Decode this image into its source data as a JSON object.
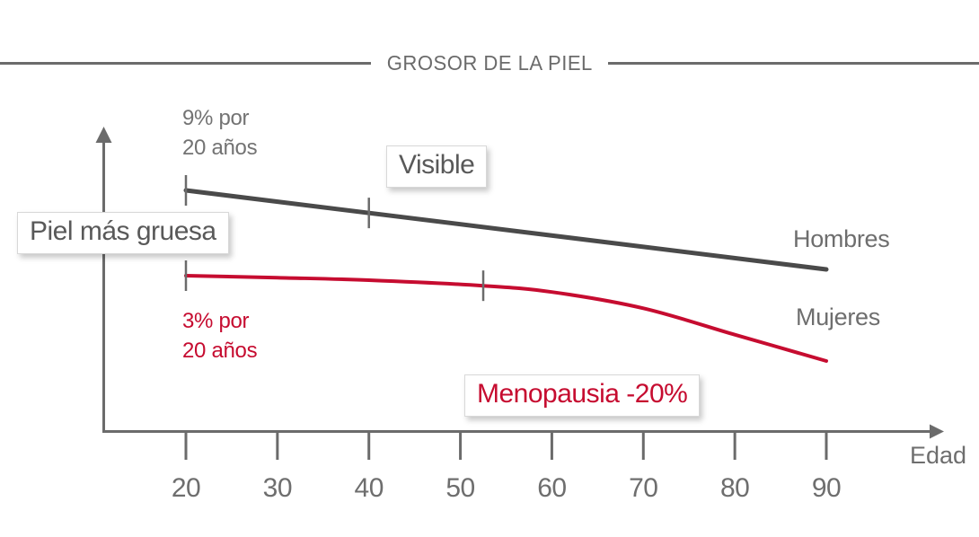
{
  "chart_data": {
    "type": "line",
    "title": "GROSOR DE LA PIEL",
    "xlabel": "Edad",
    "x_range": [
      20,
      90
    ],
    "x_ticks": [
      20,
      30,
      40,
      50,
      60,
      70,
      80,
      90
    ],
    "grid": false,
    "y_axis_labeled": false,
    "series": [
      {
        "name": "Hombres",
        "color": "#4a4a4a",
        "rate_label": "9% por\n20 años",
        "marker_ages": [
          20,
          40
        ],
        "points": [
          {
            "age": 20,
            "value": 100
          },
          {
            "age": 90,
            "value": 68.5
          }
        ]
      },
      {
        "name": "Mujeres",
        "color": "#c60c30",
        "rate_label": "3% por\n20 años",
        "marker_ages": [
          20,
          52.5
        ],
        "points": [
          {
            "age": 20,
            "value": 66
          },
          {
            "age": 30,
            "value": 65.2
          },
          {
            "age": 40,
            "value": 64.2
          },
          {
            "age": 52.5,
            "value": 62
          },
          {
            "age": 60,
            "value": 59.5
          },
          {
            "age": 70,
            "value": 53
          },
          {
            "age": 80,
            "value": 42.5
          },
          {
            "age": 90,
            "value": 32
          }
        ]
      }
    ],
    "annotations": [
      {
        "text": "Piel más gruesa",
        "style": "boxed",
        "color": "#595959"
      },
      {
        "text": "Visible",
        "style": "boxed",
        "color": "#595959"
      },
      {
        "text": "Menopausia -20%",
        "style": "boxed",
        "color": "#c60c30"
      }
    ]
  },
  "colors": {
    "accent_red": "#c60c30",
    "line_gray": "#4a4a4a",
    "axis_gray": "#6b6b6b",
    "text_gray": "#6e6e6e"
  }
}
